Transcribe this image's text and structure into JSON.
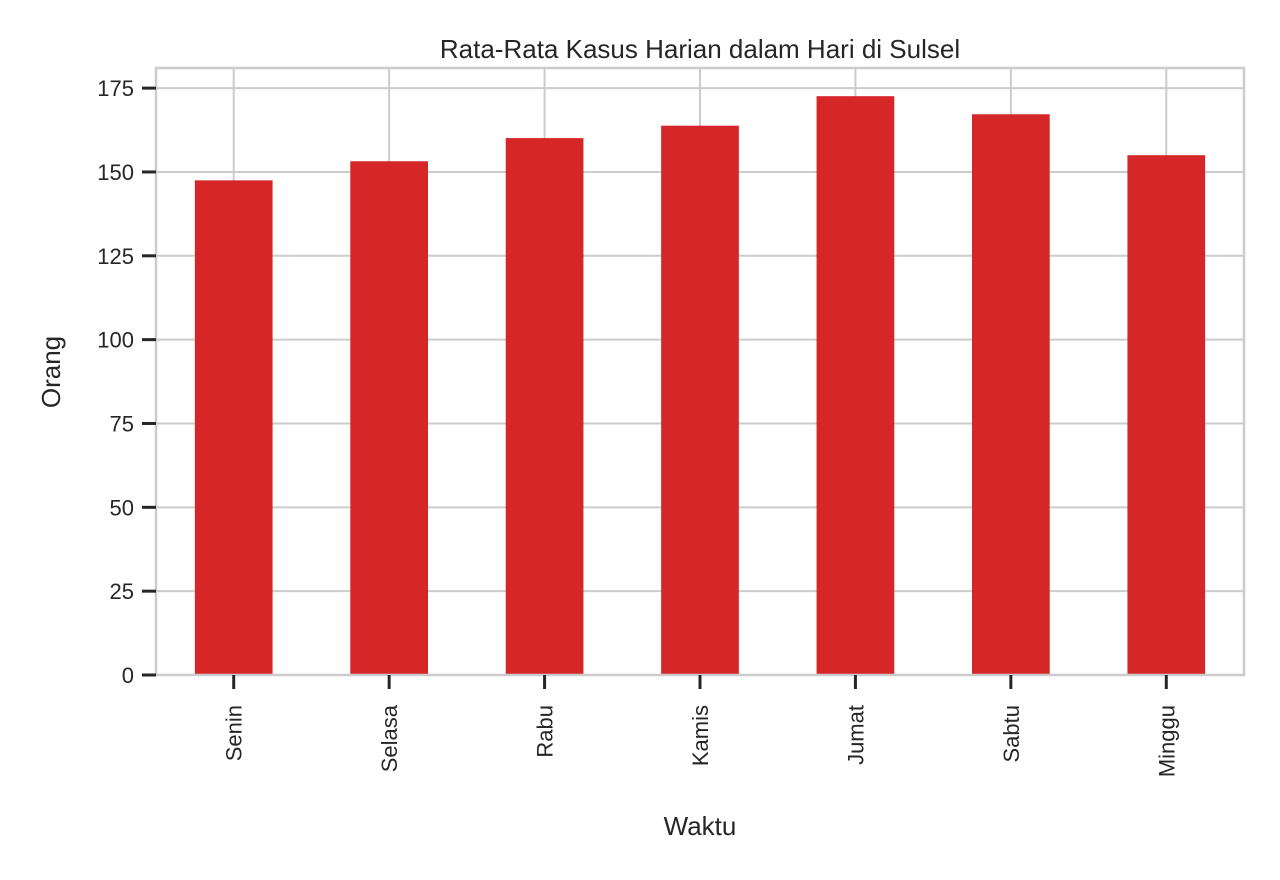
{
  "chart_data": {
    "type": "bar",
    "title": "Rata-Rata Kasus Harian dalam Hari di Sulsel",
    "xlabel": "Waktu",
    "ylabel": "Orang",
    "categories": [
      "Senin",
      "Selasa",
      "Rabu",
      "Kamis",
      "Jumat",
      "Sabtu",
      "Minggu"
    ],
    "values": [
      147.5,
      153.2,
      160.1,
      163.8,
      172.6,
      167.2,
      155.0
    ],
    "ylim": [
      0,
      181
    ],
    "yticks": [
      0,
      25,
      50,
      75,
      100,
      125,
      150,
      175
    ],
    "bar_color": "#d62728",
    "grid": true
  }
}
